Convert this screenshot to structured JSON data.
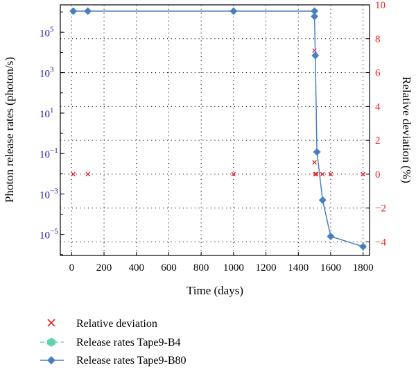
{
  "chart_data": {
    "type": "line",
    "xlabel": "Time (days)",
    "ylabel_left": "Photon release rates (photon/s)",
    "ylabel_right": "Relative deviation (%)",
    "x_ticks": [
      "0",
      "200",
      "400",
      "600",
      "800",
      "1000",
      "1200",
      "1400",
      "1600",
      "1800"
    ],
    "x_tick_values": [
      0,
      200,
      400,
      600,
      800,
      1000,
      1200,
      1400,
      1600,
      1800
    ],
    "y_left_ticks": [
      {
        "exp": -5,
        "label": "10",
        "sup": "−5"
      },
      {
        "exp": -3,
        "label": "10",
        "sup": "−3"
      },
      {
        "exp": -1,
        "label": "10",
        "sup": "−1"
      },
      {
        "exp": 1,
        "label": "10",
        "sup": "1"
      },
      {
        "exp": 3,
        "label": "10",
        "sup": "3"
      },
      {
        "exp": 5,
        "label": "10",
        "sup": "5"
      }
    ],
    "y_right_ticks": [
      "−4",
      "−2",
      "0",
      "2",
      "4",
      "6",
      "8",
      "10"
    ],
    "y_right_tick_values": [
      -4,
      -2,
      0,
      2,
      4,
      6,
      8,
      10
    ],
    "xlim": [
      -70,
      1840
    ],
    "ylim_left_log10": [
      -6.04,
      6.35
    ],
    "ylim_right": [
      -4.8,
      10
    ],
    "grid": true,
    "legend_position": "bottom",
    "series": [
      {
        "name": "Relative deviation",
        "axis": "right",
        "marker": "x",
        "color": "#e8201c",
        "x": [
          10,
          100,
          1000,
          1500,
          1500,
          1505,
          1510,
          1550,
          1600,
          1800
        ],
        "y": [
          0,
          0,
          0,
          7.3,
          0.7,
          0,
          0,
          0,
          0,
          0
        ]
      },
      {
        "name": "Release rates Tape9-B4",
        "axis": "left",
        "marker": "hexagon",
        "color": "#5fd3b0",
        "x": [],
        "y": []
      },
      {
        "name": "Release rates Tape9-B80",
        "axis": "left",
        "marker": "diamond",
        "color": "#4a7fbf",
        "x": [
          10,
          100,
          1000,
          1500,
          1500,
          1505,
          1515,
          1550,
          1600,
          1800
        ],
        "y": [
          1100000.0,
          1100000.0,
          1100000.0,
          1100000.0,
          600000.0,
          7000.0,
          0.12,
          0.0005,
          8e-06,
          2.5e-06
        ]
      }
    ]
  }
}
